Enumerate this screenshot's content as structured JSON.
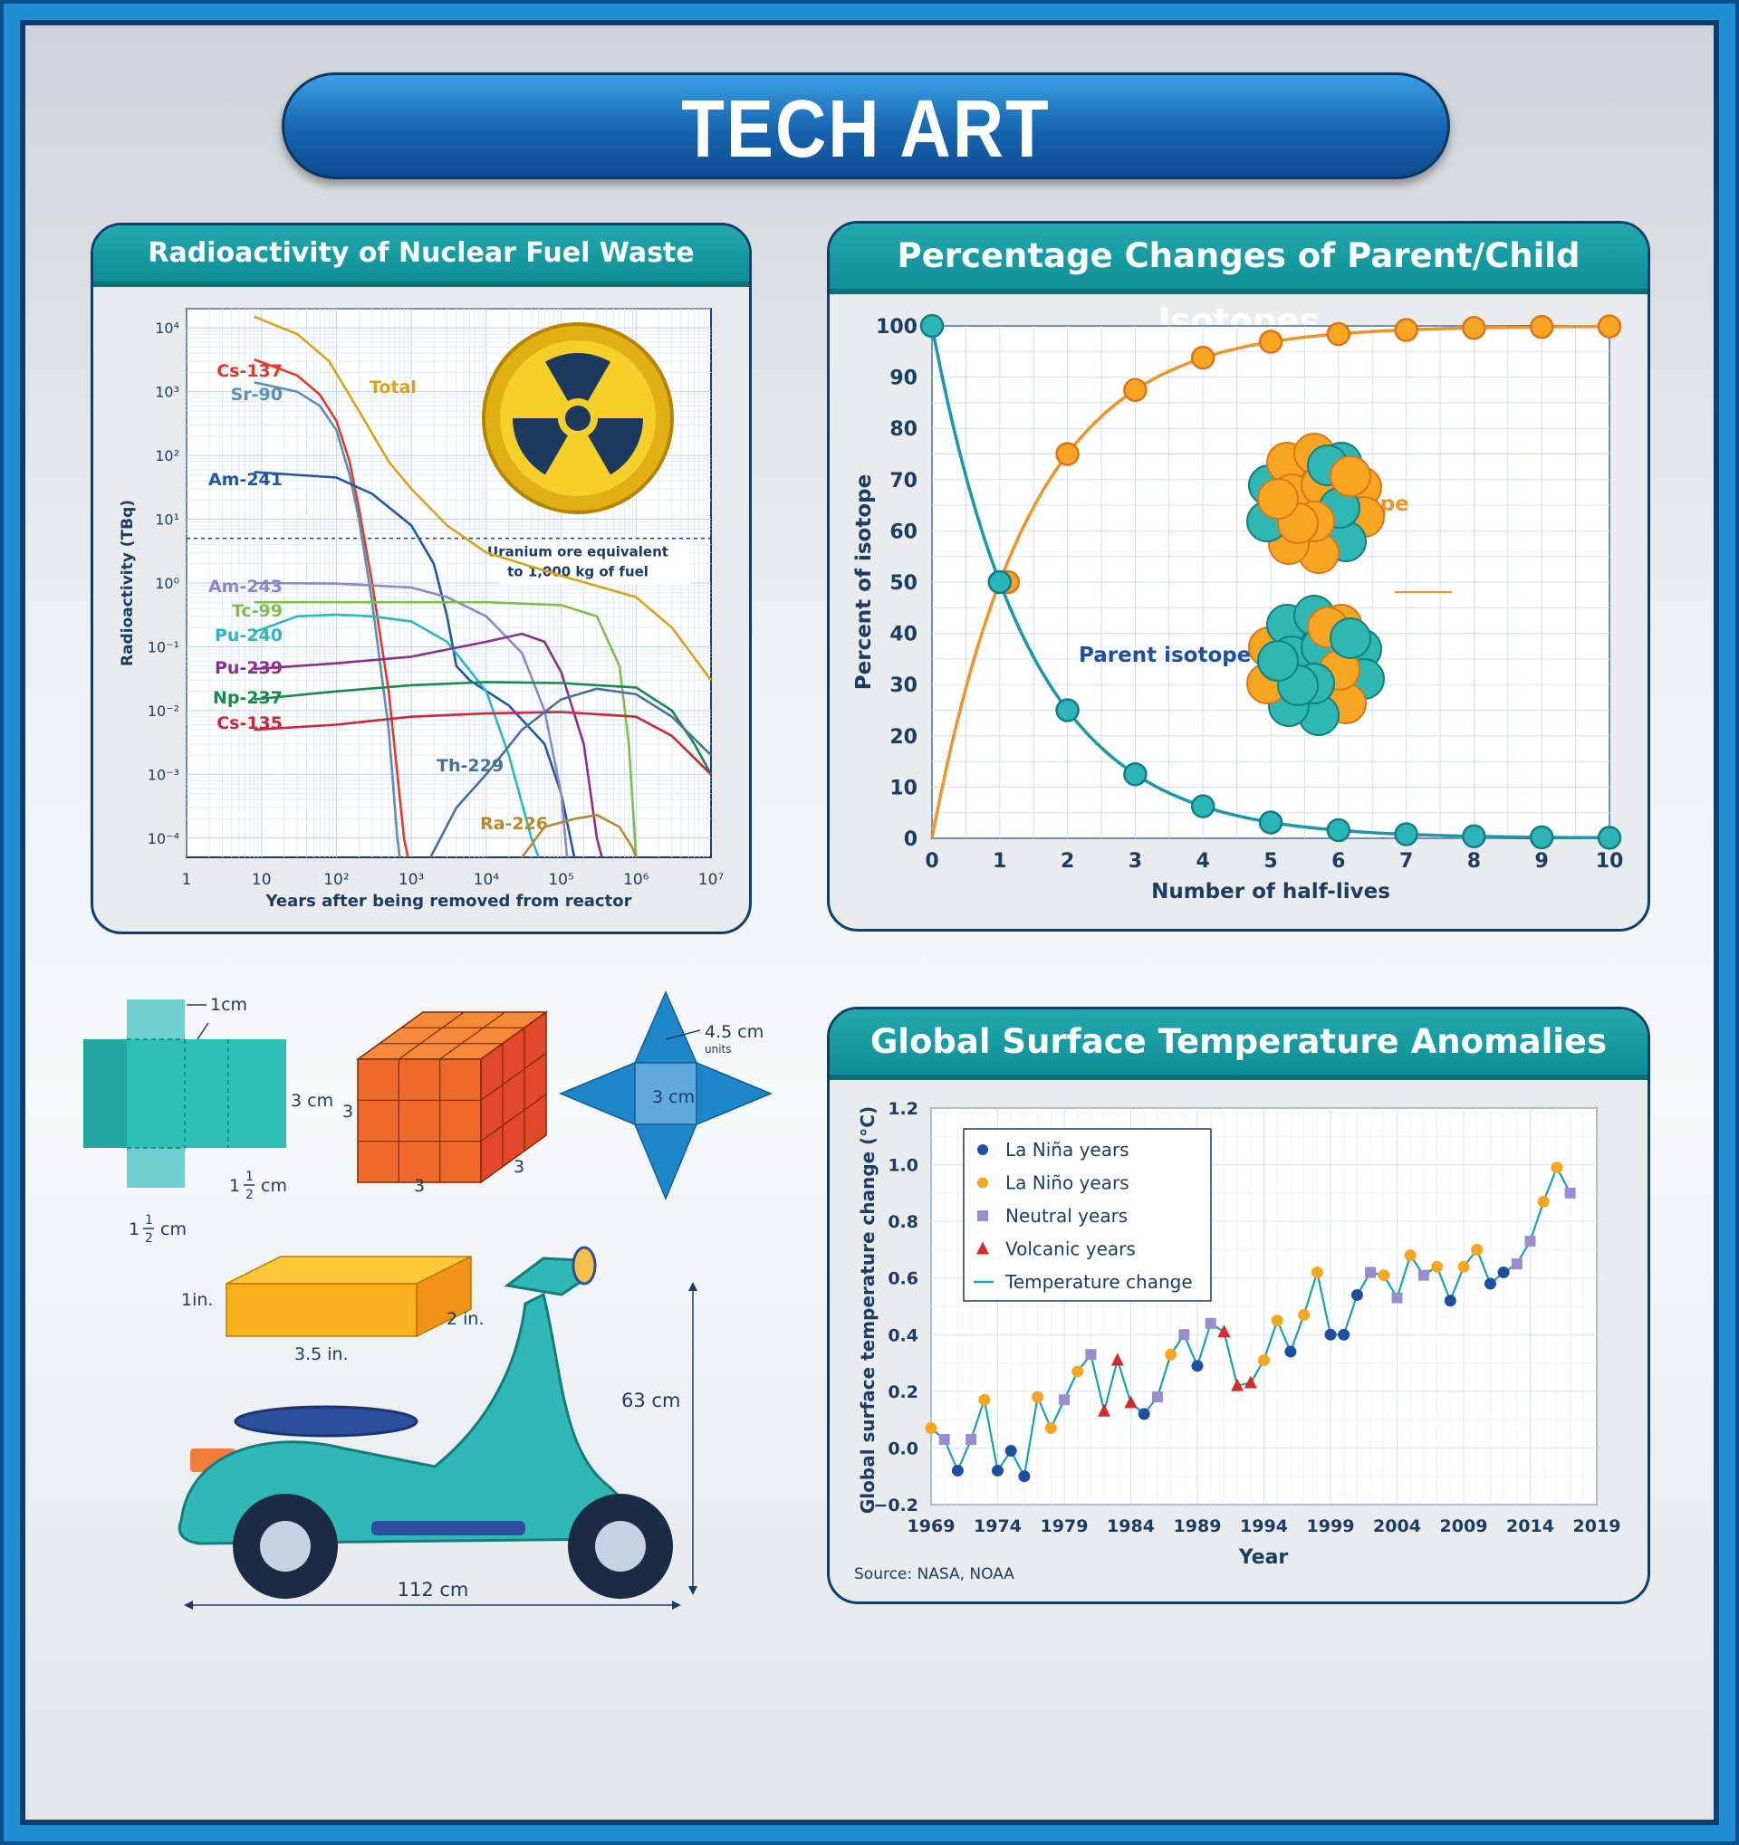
{
  "page": {
    "title": "TECH ART"
  },
  "colors": {
    "banner": "#1763b0",
    "teal_header": "#169aa0",
    "frame": "#1f8fd2",
    "navy": "#0a3f70"
  },
  "radio_chart": {
    "title": "Radioactivity of Nuclear Fuel Waste",
    "xlabel": "Years after being removed from reactor",
    "ylabel": "Radioactivity (TBq)",
    "x_ticks": [
      {
        "e": 0,
        "label": "1"
      },
      {
        "e": 1,
        "label": "10"
      },
      {
        "e": 2,
        "label": "10²"
      },
      {
        "e": 3,
        "label": "10³"
      },
      {
        "e": 4,
        "label": "10⁴"
      },
      {
        "e": 5,
        "label": "10⁵"
      },
      {
        "e": 6,
        "label": "10⁶"
      },
      {
        "e": 7,
        "label": "10⁷"
      }
    ],
    "y_ticks": [
      {
        "e": 4,
        "label": "10⁴"
      },
      {
        "e": 3,
        "label": "10³"
      },
      {
        "e": 2,
        "label": "10²"
      },
      {
        "e": 1,
        "label": "10¹"
      },
      {
        "e": 0,
        "label": "10⁰"
      },
      {
        "e": -1,
        "label": "10⁻¹"
      },
      {
        "e": -2,
        "label": "10⁻²"
      },
      {
        "e": -3,
        "label": "10⁻³"
      },
      {
        "e": -4,
        "label": "10⁻⁴"
      }
    ],
    "annotation_line1": "Uranium ore equivalent",
    "annotation_line2": "to 1,000 kg of fuel",
    "annotation_value_exp": 0.7
  },
  "iso_chart": {
    "title": "Percentage Changes of Parent/Child Isotopes",
    "xlabel": "Number of half-lives",
    "ylabel": "Percent of isotope",
    "child_label": "Child isotope",
    "parent_label": "Parent isotope",
    "x_ticks": [
      "0",
      "1",
      "2",
      "3",
      "4",
      "5",
      "6",
      "7",
      "8",
      "9",
      "10"
    ],
    "y_ticks": [
      "0",
      "10",
      "20",
      "30",
      "40",
      "50",
      "60",
      "70",
      "80",
      "90",
      "100"
    ]
  },
  "temp_chart": {
    "title": "Global Surface Temperature Anomalies",
    "xlabel": "Year",
    "ylabel": "Global surface temperature change (°C)",
    "source": "Source: NASA, NOAA",
    "x_ticks": [
      "1969",
      "1974",
      "1979",
      "1984",
      "1989",
      "1994",
      "1999",
      "2004",
      "2009",
      "2014",
      "2019"
    ],
    "y_ticks": [
      "1.2",
      "1.0",
      "0.8",
      "0.6",
      "0.4",
      "0.2",
      "0.0",
      "−0.2"
    ],
    "legend": {
      "nina": "La Niña years",
      "nino": "La Niño years",
      "neutral": "Neutral years",
      "volcanic": "Volcanic years",
      "line": "Temperature change"
    }
  },
  "shapes": {
    "net_top_dim": "1cm",
    "net_height_dim": "3 cm",
    "net_right_dim_whole": "1",
    "net_right_dim_frac_num": "1",
    "net_right_dim_frac_den": "2",
    "net_right_dim_unit": "cm",
    "net_left_dim_whole": "1",
    "net_left_dim_frac_num": "1",
    "net_left_dim_frac_den": "2",
    "net_left_dim_unit": "cm",
    "cube_left": "3",
    "cube_bottom": "3",
    "cube_right": "3",
    "star_top_dim": "4.5 cm",
    "star_units": "units",
    "star_center_dim": "3 cm",
    "box_height": "1in.",
    "box_length": "3.5 in.",
    "box_depth": "2 in.",
    "scooter_height": "63 cm",
    "scooter_length": "112 cm"
  },
  "chart_data": [
    {
      "type": "line",
      "title": "Radioactivity of Nuclear Fuel Waste",
      "xlabel": "Years after being removed from reactor",
      "ylabel": "Radioactivity (TBq)",
      "x_scale": "log",
      "y_scale": "log",
      "xlim": [
        1,
        10000000
      ],
      "ylim": [
        5e-05,
        20000
      ],
      "series": [
        {
          "name": "Total",
          "color": "#d9a21b",
          "points": [
            [
              8,
              15000
            ],
            [
              30,
              8000
            ],
            [
              80,
              3000
            ],
            [
              200,
              500
            ],
            [
              500,
              80
            ],
            [
              1000,
              30
            ],
            [
              3000,
              8
            ],
            [
              10000,
              3
            ],
            [
              100000,
              1.3
            ],
            [
              1000000,
              0.6
            ],
            [
              3000000,
              0.2
            ],
            [
              10000000,
              0.03
            ]
          ]
        },
        {
          "name": "Cs-137",
          "color": "#e03a2a",
          "points": [
            [
              8,
              3200
            ],
            [
              30,
              1800
            ],
            [
              60,
              900
            ],
            [
              100,
              350
            ],
            [
              150,
              80
            ],
            [
              200,
              15
            ],
            [
              300,
              1
            ],
            [
              500,
              0.02
            ],
            [
              800,
              0.0001
            ],
            [
              900,
              5e-05
            ]
          ]
        },
        {
          "name": "Sr-90",
          "color": "#5b8fb5",
          "points": [
            [
              8,
              1400
            ],
            [
              30,
              1000
            ],
            [
              60,
              600
            ],
            [
              100,
              250
            ],
            [
              150,
              50
            ],
            [
              200,
              10
            ],
            [
              300,
              0.5
            ],
            [
              500,
              0.005
            ],
            [
              650,
              0.0001
            ],
            [
              700,
              5e-05
            ]
          ]
        },
        {
          "name": "Am-241",
          "color": "#1f56a8",
          "points": [
            [
              8,
              55
            ],
            [
              100,
              45
            ],
            [
              300,
              25
            ],
            [
              1000,
              8
            ],
            [
              2000,
              2
            ],
            [
              3000,
              0.3
            ],
            [
              4000,
              0.05
            ],
            [
              6000,
              0.03
            ],
            [
              20000,
              0.012
            ],
            [
              60000,
              0.003
            ],
            [
              100000,
              0.0005
            ],
            [
              150000,
              5e-05
            ]
          ]
        },
        {
          "name": "Am-243",
          "color": "#8e86c9",
          "points": [
            [
              8,
              1
            ],
            [
              100,
              0.98
            ],
            [
              1000,
              0.85
            ],
            [
              3000,
              0.6
            ],
            [
              10000,
              0.3
            ],
            [
              30000,
              0.08
            ],
            [
              60000,
              0.01
            ],
            [
              100000,
              0.0005
            ],
            [
              120000,
              5e-05
            ]
          ]
        },
        {
          "name": "Tc-99",
          "color": "#7cc04b",
          "points": [
            [
              8,
              0.5
            ],
            [
              1000,
              0.5
            ],
            [
              10000,
              0.5
            ],
            [
              100000,
              0.45
            ],
            [
              300000,
              0.3
            ],
            [
              600000,
              0.05
            ],
            [
              800000,
              0.003
            ],
            [
              1000000,
              5e-05
            ]
          ]
        },
        {
          "name": "Pu-240",
          "color": "#2bb7c1",
          "points": [
            [
              8,
              0.17
            ],
            [
              30,
              0.3
            ],
            [
              100,
              0.32
            ],
            [
              300,
              0.3
            ],
            [
              1000,
              0.25
            ],
            [
              3000,
              0.12
            ],
            [
              10000,
              0.02
            ],
            [
              20000,
              0.002
            ],
            [
              40000,
              0.0001
            ],
            [
              50000,
              5e-05
            ]
          ]
        },
        {
          "name": "Pu-239",
          "color": "#8c2e8e",
          "points": [
            [
              8,
              0.045
            ],
            [
              100,
              0.055
            ],
            [
              1000,
              0.07
            ],
            [
              10000,
              0.12
            ],
            [
              30000,
              0.16
            ],
            [
              60000,
              0.12
            ],
            [
              100000,
              0.04
            ],
            [
              200000,
              0.003
            ],
            [
              300000,
              0.0001
            ],
            [
              350000,
              5e-05
            ]
          ]
        },
        {
          "name": "Np-237",
          "color": "#178a4a",
          "points": [
            [
              8,
              0.015
            ],
            [
              100,
              0.02
            ],
            [
              1000,
              0.025
            ],
            [
              10000,
              0.028
            ],
            [
              100000,
              0.027
            ],
            [
              1000000,
              0.023
            ],
            [
              3000000,
              0.01
            ],
            [
              6000000,
              0.003
            ],
            [
              10000000,
              0.001
            ]
          ]
        },
        {
          "name": "Cs-135",
          "color": "#c9283a",
          "points": [
            [
              8,
              0.005
            ],
            [
              100,
              0.006
            ],
            [
              1000,
              0.008
            ],
            [
              10000,
              0.009
            ],
            [
              100000,
              0.0095
            ],
            [
              1000000,
              0.008
            ],
            [
              3000000,
              0.004
            ],
            [
              10000000,
              0.001
            ]
          ]
        },
        {
          "name": "Th-229",
          "color": "#4a6f9a",
          "points": [
            [
              1800,
              5e-05
            ],
            [
              4000,
              0.0003
            ],
            [
              10000,
              0.001
            ],
            [
              30000,
              0.005
            ],
            [
              100000,
              0.015
            ],
            [
              300000,
              0.022
            ],
            [
              1000000,
              0.018
            ],
            [
              3000000,
              0.008
            ],
            [
              10000000,
              0.002
            ]
          ]
        },
        {
          "name": "Ra-226",
          "color": "#b58a2a",
          "points": [
            [
              30000,
              5e-05
            ],
            [
              60000,
              0.00015
            ],
            [
              150000,
              0.0002
            ],
            [
              300000,
              0.00023
            ],
            [
              600000,
              0.00015
            ],
            [
              900000,
              7e-05
            ],
            [
              1000000,
              5e-05
            ]
          ]
        }
      ]
    },
    {
      "type": "line",
      "title": "Percentage Changes of Parent/Child Isotopes",
      "xlabel": "Number of half-lives",
      "ylabel": "Percent of isotope",
      "x": [
        0,
        1,
        2,
        3,
        4,
        5,
        6,
        7,
        8,
        9,
        10
      ],
      "xlim": [
        0,
        10
      ],
      "ylim": [
        0,
        100
      ],
      "series": [
        {
          "name": "Child isotope",
          "color": "#f0932a",
          "values": [
            0,
            50,
            75,
            87.5,
            93.8,
            96.9,
            98.4,
            99.2,
            99.6,
            99.8,
            99.9
          ]
        },
        {
          "name": "Parent isotope",
          "color": "#1a97a8",
          "values": [
            100,
            50,
            25,
            12.5,
            6.25,
            3.1,
            1.6,
            0.8,
            0.4,
            0.2,
            0.1
          ]
        }
      ]
    },
    {
      "type": "scatter",
      "title": "Global Surface Temperature Anomalies",
      "xlabel": "Year",
      "ylabel": "Global surface temperature change (°C)",
      "xlim": [
        1969,
        2019
      ],
      "ylim": [
        -0.2,
        1.2
      ],
      "legend_position": "top-left",
      "categories_map": {
        "n": "La Niña years",
        "o": "La Niño years",
        "u": "Neutral years",
        "v": "Volcanic years"
      },
      "x": [
        1969,
        1970,
        1971,
        1972,
        1973,
        1974,
        1975,
        1976,
        1977,
        1978,
        1979,
        1980,
        1981,
        1982,
        1983,
        1984,
        1985,
        1986,
        1987,
        1988,
        1989,
        1990,
        1991,
        1992,
        1993,
        1994,
        1995,
        1996,
        1997,
        1998,
        1999,
        2000,
        2001,
        2002,
        2003,
        2004,
        2005,
        2006,
        2007,
        2008,
        2009,
        2010,
        2011,
        2012,
        2013,
        2014,
        2015,
        2016,
        2017
      ],
      "values": [
        0.07,
        0.03,
        -0.08,
        0.03,
        0.17,
        -0.08,
        -0.01,
        -0.1,
        0.18,
        0.07,
        0.17,
        0.27,
        0.33,
        0.13,
        0.31,
        0.16,
        0.12,
        0.18,
        0.33,
        0.4,
        0.29,
        0.44,
        0.41,
        0.22,
        0.23,
        0.31,
        0.45,
        0.34,
        0.47,
        0.62,
        0.4,
        0.4,
        0.54,
        0.62,
        0.61,
        0.53,
        0.68,
        0.61,
        0.64,
        0.52,
        0.64,
        0.7,
        0.58,
        0.62,
        0.65,
        0.73,
        0.87,
        0.99,
        0.9
      ],
      "kind": [
        "o",
        "u",
        "n",
        "u",
        "o",
        "n",
        "n",
        "n",
        "o",
        "o",
        "u",
        "o",
        "u",
        "v",
        "v",
        "v",
        "n",
        "u",
        "o",
        "u",
        "n",
        "u",
        "v",
        "v",
        "v",
        "o",
        "o",
        "n",
        "o",
        "o",
        "n",
        "n",
        "n",
        "u",
        "o",
        "u",
        "o",
        "u",
        "o",
        "n",
        "o",
        "o",
        "n",
        "n",
        "u",
        "u",
        "o",
        "o",
        "u"
      ]
    }
  ]
}
